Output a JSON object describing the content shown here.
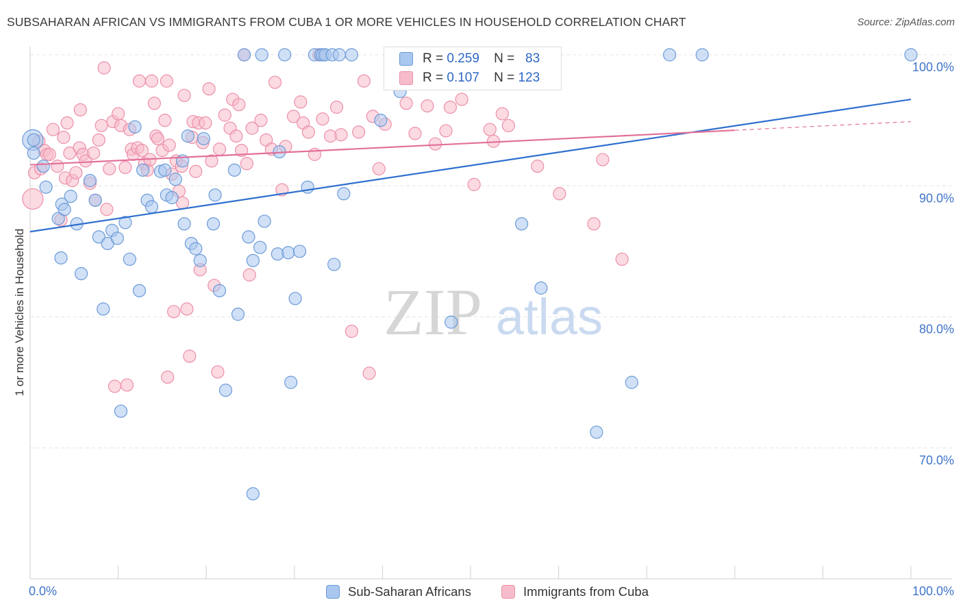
{
  "header": {
    "title": "SUBSAHARAN AFRICAN VS IMMIGRANTS FROM CUBA 1 OR MORE VEHICLES IN HOUSEHOLD CORRELATION CHART",
    "source": "Source: ZipAtlas.com"
  },
  "watermark": {
    "zip": "ZIP",
    "atlas": "atlas"
  },
  "legend": {
    "series1": {
      "r_label": "R =",
      "r_value": "0.259",
      "n_label": "N =",
      "n_value": "83"
    },
    "series2": {
      "r_label": "R =",
      "r_value": "0.107",
      "n_label": "N =",
      "n_value": "123"
    }
  },
  "bottom_legend": {
    "series1": "Sub-Saharan Africans",
    "series2": "Immigrants from Cuba"
  },
  "colors": {
    "blue_fill": "#a9c7ef",
    "blue_stroke": "#6b9bd8",
    "blue_line": "#2d6fcf",
    "pink_fill": "#f7bccb",
    "pink_stroke": "#ec8fa8",
    "pink_line": "#e2709a",
    "axis_label": "#3f74c9",
    "grid": "#e4e4e4"
  },
  "chart_data": {
    "type": "scatter",
    "title": "SUBSAHARAN AFRICAN VS IMMIGRANTS FROM CUBA 1 OR MORE VEHICLES IN HOUSEHOLD CORRELATION CHART",
    "xlabel": "",
    "ylabel": "1 or more Vehicles in Household",
    "xlim": [
      0,
      100
    ],
    "ylim": [
      59,
      101
    ],
    "x_tick_labels": [
      "0.0%",
      "100.0%"
    ],
    "y_ticks": [
      {
        "value": 100,
        "label": "100.0%"
      },
      {
        "value": 90,
        "label": "90.0%"
      },
      {
        "value": 80,
        "label": "80.0%"
      },
      {
        "value": 70,
        "label": "70.0%"
      }
    ],
    "series": [
      {
        "name": "Sub-Saharan Africans",
        "color": "blue",
        "trend": {
          "x": [
            0,
            100
          ],
          "y": [
            86.5,
            96.6
          ],
          "solid_to": 100
        },
        "points": [
          [
            0.3,
            93.5
          ],
          [
            0.4,
            92.5
          ],
          [
            1.5,
            91.5
          ],
          [
            1.8,
            89.9
          ],
          [
            3.2,
            87.5
          ],
          [
            3.5,
            84.5
          ],
          [
            3.6,
            88.6
          ],
          [
            3.9,
            88.2
          ],
          [
            4.6,
            89.2
          ],
          [
            5.3,
            87.1
          ],
          [
            5.8,
            83.3
          ],
          [
            6.8,
            90.4
          ],
          [
            7.4,
            88.9
          ],
          [
            7.8,
            86.1
          ],
          [
            8.3,
            80.6
          ],
          [
            8.8,
            85.6
          ],
          [
            9.3,
            86.6
          ],
          [
            9.9,
            86.0
          ],
          [
            10.3,
            72.8
          ],
          [
            10.8,
            87.2
          ],
          [
            11.3,
            84.4
          ],
          [
            11.9,
            94.5
          ],
          [
            12.4,
            82.0
          ],
          [
            12.8,
            91.2
          ],
          [
            13.3,
            88.9
          ],
          [
            13.8,
            88.4
          ],
          [
            14.8,
            91.1
          ],
          [
            15.3,
            91.2
          ],
          [
            15.5,
            89.3
          ],
          [
            16.1,
            89.1
          ],
          [
            16.5,
            90.5
          ],
          [
            17.3,
            91.9
          ],
          [
            17.5,
            87.1
          ],
          [
            17.9,
            93.8
          ],
          [
            18.3,
            85.6
          ],
          [
            18.8,
            85.2
          ],
          [
            19.3,
            84.3
          ],
          [
            19.7,
            93.6
          ],
          [
            20.8,
            87.1
          ],
          [
            21.0,
            89.3
          ],
          [
            21.5,
            82.0
          ],
          [
            22.2,
            74.4
          ],
          [
            23.2,
            91.2
          ],
          [
            23.6,
            80.2
          ],
          [
            24.3,
            100
          ],
          [
            24.8,
            86.1
          ],
          [
            25.3,
            84.3
          ],
          [
            25.3,
            66.5
          ],
          [
            26.1,
            85.3
          ],
          [
            26.3,
            100
          ],
          [
            26.6,
            87.3
          ],
          [
            28.1,
            84.8
          ],
          [
            28.3,
            92.6
          ],
          [
            28.9,
            100
          ],
          [
            29.3,
            84.9
          ],
          [
            29.6,
            75.0
          ],
          [
            30.1,
            81.4
          ],
          [
            30.6,
            85.0
          ],
          [
            31.5,
            89.9
          ],
          [
            32.3,
            100
          ],
          [
            33.0,
            100
          ],
          [
            33.2,
            100
          ],
          [
            33.5,
            100
          ],
          [
            34.3,
            100
          ],
          [
            34.5,
            84.0
          ],
          [
            35.1,
            100
          ],
          [
            35.6,
            89.4
          ],
          [
            36.5,
            100
          ],
          [
            39.8,
            95.0
          ],
          [
            42.0,
            97.2
          ],
          [
            42.3,
            100
          ],
          [
            47.3,
            100
          ],
          [
            47.5,
            100
          ],
          [
            47.8,
            79.6
          ],
          [
            55.7,
            100
          ],
          [
            55.8,
            87.1
          ],
          [
            58.0,
            82.2
          ],
          [
            64.3,
            71.2
          ],
          [
            68.3,
            75.0
          ],
          [
            72.6,
            100
          ],
          [
            76.3,
            100
          ],
          [
            100,
            100
          ],
          [
            0.4,
            93.5
          ]
        ]
      },
      {
        "name": "Immigrants from Cuba",
        "color": "pink",
        "trend": {
          "x": [
            0,
            100
          ],
          "y": [
            91.6,
            94.9
          ],
          "solid_to": 80
        },
        "points": [
          [
            0.3,
            89.0
          ],
          [
            0.5,
            91.0
          ],
          [
            1.0,
            93.4
          ],
          [
            1.2,
            91.3
          ],
          [
            1.6,
            92.7
          ],
          [
            1.9,
            92.4
          ],
          [
            2.2,
            92.4
          ],
          [
            2.6,
            94.3
          ],
          [
            3.1,
            91.5
          ],
          [
            3.5,
            87.4
          ],
          [
            3.8,
            93.7
          ],
          [
            4.0,
            90.6
          ],
          [
            4.2,
            94.8
          ],
          [
            4.5,
            92.5
          ],
          [
            4.8,
            90.4
          ],
          [
            5.2,
            91.0
          ],
          [
            5.6,
            92.9
          ],
          [
            5.7,
            95.8
          ],
          [
            6.0,
            92.4
          ],
          [
            6.3,
            91.9
          ],
          [
            6.8,
            90.2
          ],
          [
            7.2,
            92.5
          ],
          [
            7.4,
            88.9
          ],
          [
            7.8,
            93.5
          ],
          [
            8.1,
            94.6
          ],
          [
            8.4,
            99.0
          ],
          [
            8.7,
            88.2
          ],
          [
            9.0,
            91.3
          ],
          [
            9.4,
            94.9
          ],
          [
            9.6,
            74.7
          ],
          [
            10.0,
            95.5
          ],
          [
            10.3,
            94.6
          ],
          [
            10.8,
            91.4
          ],
          [
            11.0,
            74.8
          ],
          [
            11.3,
            94.3
          ],
          [
            11.5,
            92.8
          ],
          [
            11.7,
            92.4
          ],
          [
            12.2,
            92.9
          ],
          [
            12.4,
            98.0
          ],
          [
            12.7,
            92.7
          ],
          [
            13.0,
            91.7
          ],
          [
            13.3,
            91.2
          ],
          [
            13.6,
            92.0
          ],
          [
            13.8,
            98.0
          ],
          [
            14.1,
            96.3
          ],
          [
            14.3,
            93.8
          ],
          [
            14.5,
            93.6
          ],
          [
            15.0,
            92.7
          ],
          [
            15.3,
            95.0
          ],
          [
            15.5,
            98.0
          ],
          [
            15.6,
            75.4
          ],
          [
            15.8,
            93.1
          ],
          [
            16.1,
            90.9
          ],
          [
            16.3,
            80.4
          ],
          [
            16.6,
            91.9
          ],
          [
            16.9,
            89.6
          ],
          [
            17.2,
            91.5
          ],
          [
            17.3,
            88.7
          ],
          [
            17.5,
            96.9
          ],
          [
            17.8,
            80.6
          ],
          [
            18.1,
            77.0
          ],
          [
            18.4,
            93.7
          ],
          [
            18.5,
            94.9
          ],
          [
            18.8,
            91.1
          ],
          [
            19.1,
            94.8
          ],
          [
            19.3,
            83.6
          ],
          [
            19.6,
            93.3
          ],
          [
            19.9,
            94.8
          ],
          [
            20.3,
            97.4
          ],
          [
            20.6,
            91.9
          ],
          [
            20.9,
            82.4
          ],
          [
            21.3,
            75.8
          ],
          [
            21.5,
            92.8
          ],
          [
            22.1,
            95.4
          ],
          [
            22.7,
            94.4
          ],
          [
            23.0,
            96.6
          ],
          [
            23.4,
            93.8
          ],
          [
            23.7,
            96.2
          ],
          [
            24.0,
            92.7
          ],
          [
            24.3,
            100
          ],
          [
            24.6,
            91.7
          ],
          [
            24.9,
            83.2
          ],
          [
            25.2,
            94.4
          ],
          [
            26.2,
            95.0
          ],
          [
            26.8,
            93.5
          ],
          [
            27.4,
            92.8
          ],
          [
            27.8,
            97.9
          ],
          [
            28.6,
            89.7
          ],
          [
            29.0,
            93.0
          ],
          [
            29.9,
            95.3
          ],
          [
            30.7,
            96.4
          ],
          [
            31.0,
            94.8
          ],
          [
            31.6,
            94.1
          ],
          [
            32.3,
            92.4
          ],
          [
            32.8,
            100
          ],
          [
            33.2,
            95.1
          ],
          [
            34.1,
            93.8
          ],
          [
            34.8,
            96.0
          ],
          [
            35.3,
            93.9
          ],
          [
            36.5,
            78.9
          ],
          [
            37.3,
            94.1
          ],
          [
            37.9,
            98.0
          ],
          [
            38.5,
            75.7
          ],
          [
            38.9,
            95.3
          ],
          [
            39.6,
            91.3
          ],
          [
            40.3,
            94.7
          ],
          [
            42.7,
            96.3
          ],
          [
            43.7,
            94.0
          ],
          [
            45.1,
            96.1
          ],
          [
            46.0,
            93.2
          ],
          [
            47.2,
            94.2
          ],
          [
            49.0,
            96.6
          ],
          [
            50.4,
            90.1
          ],
          [
            52.2,
            94.3
          ],
          [
            52.6,
            93.4
          ],
          [
            53.6,
            95.5
          ],
          [
            54.3,
            94.6
          ],
          [
            57.6,
            91.5
          ],
          [
            60.1,
            89.4
          ],
          [
            64.0,
            87.1
          ],
          [
            65.0,
            92.0
          ],
          [
            67.2,
            84.4
          ],
          [
            47.7,
            96.0
          ]
        ]
      }
    ]
  }
}
